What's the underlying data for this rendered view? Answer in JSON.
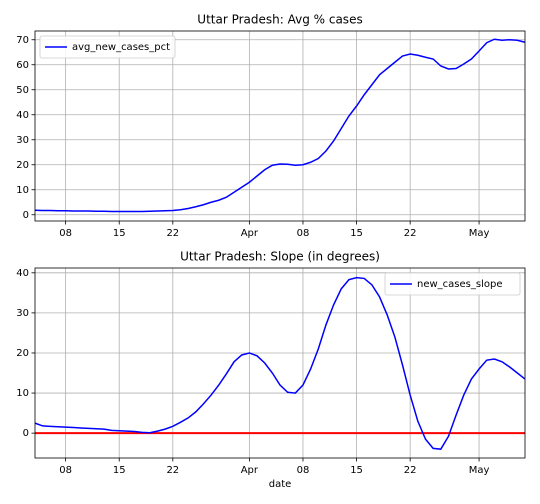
{
  "chart_data": [
    {
      "type": "line",
      "title": "Uttar Pradesh: Avg % cases",
      "categories": [
        "03-04",
        "03-05",
        "03-06",
        "03-07",
        "03-08",
        "03-09",
        "03-10",
        "03-11",
        "03-12",
        "03-13",
        "03-14",
        "03-15",
        "03-16",
        "03-17",
        "03-18",
        "03-19",
        "03-20",
        "03-21",
        "03-22",
        "03-23",
        "03-24",
        "03-25",
        "03-26",
        "03-27",
        "03-28",
        "03-29",
        "03-30",
        "03-31",
        "04-01",
        "04-02",
        "04-03",
        "04-04",
        "04-05",
        "04-06",
        "04-07",
        "04-08",
        "04-09",
        "04-10",
        "04-11",
        "04-12",
        "04-13",
        "04-14",
        "04-15",
        "04-16",
        "04-17",
        "04-18",
        "04-19",
        "04-20",
        "04-21",
        "04-22",
        "04-23",
        "04-24",
        "04-25",
        "04-26",
        "04-27",
        "04-28",
        "04-29",
        "04-30",
        "05-01",
        "05-02",
        "05-03",
        "05-04",
        "05-05",
        "05-06",
        "05-07"
      ],
      "series": [
        {
          "name": "avg_new_cases_pct",
          "color": "#0000ff",
          "values": [
            1.8,
            1.7,
            1.7,
            1.6,
            1.6,
            1.5,
            1.5,
            1.5,
            1.4,
            1.4,
            1.3,
            1.3,
            1.3,
            1.3,
            1.3,
            1.4,
            1.5,
            1.6,
            1.7,
            2.0,
            2.5,
            3.2,
            4.0,
            5.0,
            5.8,
            7.0,
            9.0,
            11.0,
            13,
            15.5,
            18,
            19.8,
            20.3,
            20.2,
            19.8,
            20,
            21,
            22.5,
            25.5,
            29.5,
            34.5,
            39.5,
            43.5,
            48,
            52,
            56,
            58.5,
            61,
            63.5,
            64.3,
            63.8,
            63,
            62.3,
            59.5,
            58.3,
            58.5,
            60.3,
            62.3,
            65.5,
            68.8,
            70.2,
            69.8,
            70,
            69.8,
            69
          ]
        }
      ],
      "ylim": [
        -2.5,
        73.5
      ],
      "yticks": [
        0,
        10,
        20,
        30,
        40,
        50,
        60,
        70
      ],
      "xticks": [
        {
          "value": "03-08",
          "label": "08"
        },
        {
          "value": "03-15",
          "label": "15"
        },
        {
          "value": "03-22",
          "label": "22"
        },
        {
          "value": "04-01",
          "label": "Apr"
        },
        {
          "value": "04-08",
          "label": "08"
        },
        {
          "value": "04-15",
          "label": "15"
        },
        {
          "value": "04-22",
          "label": "22"
        },
        {
          "value": "05-01",
          "label": "May"
        }
      ],
      "grid": true,
      "legend": "upper left"
    },
    {
      "type": "line",
      "title": "Uttar Pradesh: Slope (in degrees)",
      "xlabel": "date",
      "categories": [
        "03-04",
        "03-05",
        "03-06",
        "03-07",
        "03-08",
        "03-09",
        "03-10",
        "03-11",
        "03-12",
        "03-13",
        "03-14",
        "03-15",
        "03-16",
        "03-17",
        "03-18",
        "03-19",
        "03-20",
        "03-21",
        "03-22",
        "03-23",
        "03-24",
        "03-25",
        "03-26",
        "03-27",
        "03-28",
        "03-29",
        "03-30",
        "03-31",
        "04-01",
        "04-02",
        "04-03",
        "04-04",
        "04-05",
        "04-06",
        "04-07",
        "04-08",
        "04-09",
        "04-10",
        "04-11",
        "04-12",
        "04-13",
        "04-14",
        "04-15",
        "04-16",
        "04-17",
        "04-18",
        "04-19",
        "04-20",
        "04-21",
        "04-22",
        "04-23",
        "04-24",
        "04-25",
        "04-26",
        "04-27",
        "04-28",
        "04-29",
        "04-30",
        "05-01",
        "05-02",
        "05-03",
        "05-04",
        "05-05",
        "05-06",
        "05-07"
      ],
      "series": [
        {
          "name": "new_cases_slope",
          "color": "#0000ff",
          "values": [
            2.5,
            1.8,
            1.7,
            1.6,
            1.5,
            1.4,
            1.3,
            1.2,
            1.1,
            1.0,
            0.7,
            0.6,
            0.5,
            0.4,
            0.2,
            0.1,
            0.5,
            1.0,
            1.7,
            2.7,
            3.8,
            5.3,
            7.3,
            9.5,
            12,
            14.8,
            17.8,
            19.5,
            20,
            19.3,
            17.5,
            15,
            12,
            10.2,
            10,
            12,
            16,
            21,
            27,
            32,
            36,
            38.3,
            38.8,
            38.6,
            37,
            34,
            29.5,
            24,
            17,
            9.5,
            3,
            -1.5,
            -3.8,
            -4,
            -0.8,
            4.5,
            9.5,
            13.5,
            16,
            18.2,
            18.5,
            17.8,
            16.5,
            15,
            13.5
          ]
        }
      ],
      "ylim": [
        -6.2,
        41.2
      ],
      "yticks": [
        0,
        10,
        20,
        30,
        40
      ],
      "xticks": [
        {
          "value": "03-08",
          "label": "08"
        },
        {
          "value": "03-15",
          "label": "15"
        },
        {
          "value": "03-22",
          "label": "22"
        },
        {
          "value": "04-01",
          "label": "Apr"
        },
        {
          "value": "04-08",
          "label": "08"
        },
        {
          "value": "04-15",
          "label": "15"
        },
        {
          "value": "04-22",
          "label": "22"
        },
        {
          "value": "05-01",
          "label": "May"
        }
      ],
      "hline": 0,
      "hline_color": "#ff0000",
      "grid": true,
      "legend": "upper right"
    }
  ]
}
